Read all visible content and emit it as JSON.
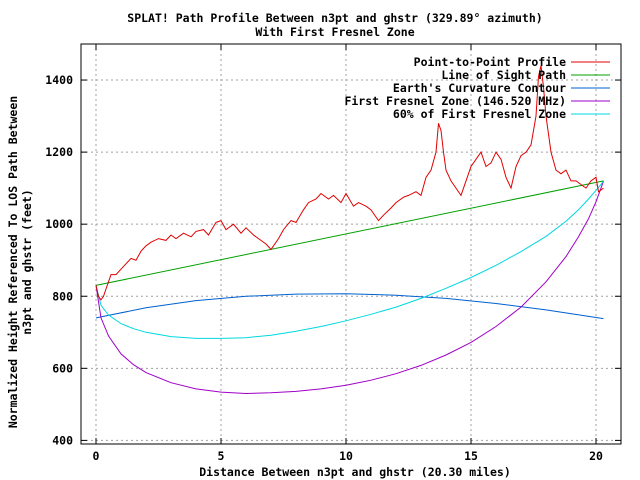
{
  "chart_data": {
    "type": "line",
    "title": "SPLAT! Path Profile Between n3pt and ghstr (329.89° azimuth)",
    "subtitle": "With First Fresnel Zone",
    "xlabel": "Distance Between n3pt and ghstr (20.30 miles)",
    "ylabel_line1": "Normalized Height Referenced To LOS Path Between",
    "ylabel_line2": "n3pt and ghstr (feet)",
    "xlim": [
      -0.6,
      21.0
    ],
    "ylim": [
      390,
      1500
    ],
    "xticks": [
      0,
      5,
      10,
      15,
      20
    ],
    "yticks": [
      400,
      600,
      800,
      1000,
      1200,
      1400
    ],
    "grid": true,
    "legend_position": "top-right",
    "colors": {
      "profile": "#e00000",
      "los": "#00a000",
      "curvature": "#0060d0",
      "fresnel": "#a000c8",
      "fresnel60": "#00d8e0"
    },
    "series": [
      {
        "name": "Point-to-Point Profile",
        "key": "profile",
        "x": [
          0,
          0.1,
          0.2,
          0.3,
          0.4,
          0.5,
          0.6,
          0.8,
          1.0,
          1.2,
          1.4,
          1.6,
          1.8,
          2.0,
          2.2,
          2.5,
          2.8,
          3.0,
          3.2,
          3.5,
          3.8,
          4.0,
          4.3,
          4.5,
          4.8,
          5.0,
          5.2,
          5.5,
          5.8,
          6.0,
          6.3,
          6.5,
          6.8,
          7.0,
          7.3,
          7.5,
          7.8,
          8.0,
          8.3,
          8.5,
          8.8,
          9.0,
          9.3,
          9.5,
          9.8,
          10.0,
          10.3,
          10.5,
          10.8,
          11.0,
          11.3,
          11.5,
          11.8,
          12.0,
          12.3,
          12.5,
          12.8,
          13.0,
          13.2,
          13.4,
          13.6,
          13.7,
          13.8,
          13.9,
          14.0,
          14.2,
          14.4,
          14.6,
          14.8,
          15.0,
          15.2,
          15.4,
          15.6,
          15.8,
          16.0,
          16.2,
          16.4,
          16.6,
          16.8,
          17.0,
          17.2,
          17.4,
          17.6,
          17.7,
          17.8,
          17.9,
          18.0,
          18.2,
          18.4,
          18.6,
          18.8,
          19.0,
          19.2,
          19.4,
          19.6,
          19.8,
          20.0,
          20.1,
          20.3
        ],
        "y": [
          830,
          800,
          790,
          800,
          820,
          840,
          860,
          860,
          875,
          890,
          905,
          900,
          925,
          940,
          950,
          960,
          955,
          970,
          960,
          975,
          965,
          980,
          985,
          970,
          1005,
          1010,
          985,
          1000,
          975,
          990,
          970,
          960,
          945,
          930,
          960,
          985,
          1010,
          1005,
          1040,
          1060,
          1070,
          1085,
          1070,
          1080,
          1060,
          1085,
          1050,
          1060,
          1050,
          1040,
          1010,
          1025,
          1045,
          1060,
          1075,
          1080,
          1090,
          1080,
          1130,
          1150,
          1200,
          1280,
          1260,
          1200,
          1150,
          1120,
          1100,
          1080,
          1120,
          1160,
          1180,
          1200,
          1160,
          1170,
          1200,
          1180,
          1130,
          1100,
          1160,
          1190,
          1200,
          1220,
          1300,
          1410,
          1440,
          1380,
          1300,
          1200,
          1150,
          1140,
          1150,
          1120,
          1120,
          1110,
          1100,
          1120,
          1130,
          1090,
          1100
        ]
      },
      {
        "name": "Line of Sight Path",
        "key": "los",
        "x": [
          0,
          20.3
        ],
        "y": [
          830,
          1120
        ]
      },
      {
        "name": "Earth's Curvature Contour",
        "key": "curvature",
        "x": [
          0,
          2,
          4,
          6,
          8,
          10,
          12,
          14,
          16,
          18,
          20.3
        ],
        "y": [
          740,
          768,
          788,
          800,
          806,
          807,
          803,
          794,
          780,
          762,
          738
        ]
      },
      {
        "name": "First Fresnel Zone (146.520 MHz)",
        "key": "fresnel",
        "x": [
          0,
          0.2,
          0.5,
          1,
          1.5,
          2,
          3,
          4,
          5,
          6,
          7,
          8,
          9,
          10,
          11,
          12,
          13,
          14,
          15,
          16,
          17,
          18,
          18.8,
          19.3,
          19.7,
          20.0,
          20.2,
          20.3
        ],
        "y": [
          830,
          740,
          690,
          640,
          610,
          588,
          560,
          543,
          534,
          530,
          532,
          536,
          543,
          553,
          567,
          585,
          608,
          637,
          672,
          716,
          770,
          840,
          910,
          965,
          1015,
          1062,
          1100,
          1120
        ]
      },
      {
        "name": "60% of First Fresnel Zone",
        "key": "fresnel60",
        "x": [
          0,
          0.2,
          0.5,
          1,
          1.5,
          2,
          3,
          4,
          5,
          6,
          7,
          8,
          9,
          10,
          11,
          12,
          13,
          14,
          15,
          16,
          17,
          18,
          18.8,
          19.3,
          19.7,
          20.0,
          20.2,
          20.3
        ],
        "y": [
          830,
          775,
          748,
          724,
          710,
          700,
          688,
          683,
          683,
          685,
          692,
          703,
          716,
          732,
          750,
          770,
          794,
          822,
          852,
          886,
          924,
          966,
          1008,
          1040,
          1070,
          1094,
          1110,
          1120
        ]
      }
    ]
  }
}
